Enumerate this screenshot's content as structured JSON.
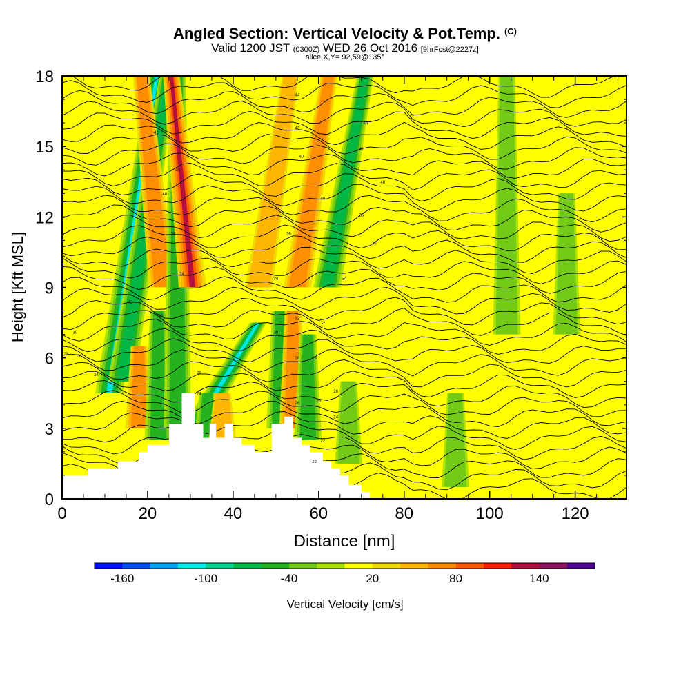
{
  "header": {
    "title": "Angled Section: Vertical Velocity & Pot.Temp.",
    "title_mark": "(C)",
    "valid_prefix": "Valid 1200 JST",
    "valid_zulu": "(0300Z)",
    "valid_date": "WED 26 Oct 2016",
    "forecast_tag": "[9hrFcst@2227z]",
    "slice_label": "slice X,Y= 92,59@135°"
  },
  "chart_data": {
    "type": "heatmap",
    "title": "Angled Section: Vertical Velocity & Pot.Temp.",
    "xlabel": "Distance [nm]",
    "ylabel": "Height [Kft MSL]",
    "xlim": [
      0,
      132
    ],
    "ylim": [
      0,
      18
    ],
    "x_ticks": [
      "0",
      "20",
      "40",
      "60",
      "80",
      "100",
      "120"
    ],
    "x_tick_values": [
      0,
      20,
      40,
      60,
      80,
      100,
      120
    ],
    "y_ticks": [
      "0",
      "3",
      "6",
      "9",
      "12",
      "15",
      "18"
    ],
    "y_tick_values": [
      0,
      3,
      6,
      9,
      12,
      15,
      18
    ],
    "grid": false,
    "colorbar": {
      "label": "Vertical Velocity [cm/s]",
      "tick_labels": [
        "-160",
        "-100",
        "-40",
        "20",
        "80",
        "140"
      ],
      "tick_values": [
        -160,
        -100,
        -40,
        20,
        80,
        140
      ],
      "range": [
        -180,
        180
      ],
      "step": 20,
      "colors": [
        "#0010ff",
        "#0050f0",
        "#00a0f0",
        "#00e8e8",
        "#00d090",
        "#00b848",
        "#20b020",
        "#70c818",
        "#a8e000",
        "#ffff00",
        "#f0d800",
        "#ffb400",
        "#ff8c00",
        "#ff5a00",
        "#ff2000",
        "#b01040",
        "#901060",
        "#500090"
      ]
    },
    "terrain_profile": {
      "x": [
        0,
        6,
        6,
        13,
        13,
        18,
        18,
        20,
        20,
        25,
        25,
        28,
        28,
        31,
        31,
        33,
        33,
        34.5,
        34.5,
        36,
        36,
        38,
        38,
        40,
        40,
        42,
        42,
        45,
        45,
        49,
        49,
        52,
        52,
        54,
        54,
        56,
        56,
        58,
        58,
        61,
        61,
        63,
        63,
        65,
        65,
        67,
        67,
        70,
        70,
        72,
        72
      ],
      "y": [
        1.0,
        1.0,
        1.3,
        1.3,
        1.6,
        1.6,
        2.0,
        2.0,
        2.3,
        2.3,
        3.2,
        3.2,
        4.5,
        4.5,
        3.2,
        3.2,
        2.6,
        2.6,
        3.2,
        3.2,
        2.6,
        2.6,
        3.2,
        3.2,
        2.6,
        2.6,
        2.3,
        2.3,
        2.0,
        2.0,
        3.2,
        3.2,
        3.5,
        3.5,
        2.6,
        2.6,
        2.3,
        2.3,
        2.0,
        2.0,
        1.6,
        1.6,
        1.3,
        1.3,
        1.0,
        1.0,
        0.6,
        0.6,
        0.3,
        0.3,
        0
      ]
    },
    "vertical_velocity_features": [
      {
        "x": 11,
        "z0": 4.5,
        "z1": 18,
        "value": -100,
        "tilt": 0.15
      },
      {
        "x": 14,
        "z0": 5.0,
        "z1": 18,
        "value": -60,
        "tilt": 0.15
      },
      {
        "x": 18,
        "z0": 3.0,
        "z1": 6.5,
        "value": 60,
        "tilt": 0.0
      },
      {
        "x": 22.5,
        "z0": 2.5,
        "z1": 8.0,
        "value": -40,
        "tilt": 0.0
      },
      {
        "x": 23.5,
        "z0": 9.0,
        "z1": 18,
        "value": 60,
        "tilt": -0.1
      },
      {
        "x": 27,
        "z0": 3.0,
        "z1": 18,
        "value": -40,
        "tilt": 0.0
      },
      {
        "x": 30.5,
        "z0": 9.0,
        "z1": 18,
        "value": 120,
        "tilt": -0.1
      },
      {
        "x": 31,
        "z0": 3.0,
        "z1": 7.5,
        "value": -100,
        "tilt": 0.6
      },
      {
        "x": 34,
        "z0": 2.5,
        "z1": 4.5,
        "value": -40,
        "tilt": 0.0
      },
      {
        "x": 37.5,
        "z0": 2.5,
        "z1": 4.5,
        "value": 40,
        "tilt": 0.0
      },
      {
        "x": 46,
        "z0": 9.0,
        "z1": 18,
        "value": 40,
        "tilt": 0.15
      },
      {
        "x": 51,
        "z0": 3.0,
        "z1": 8.0,
        "value": -40,
        "tilt": 0.0
      },
      {
        "x": 54,
        "z0": 3.0,
        "z1": 8.0,
        "value": 60,
        "tilt": 0.0
      },
      {
        "x": 55,
        "z0": 9.0,
        "z1": 18,
        "value": 60,
        "tilt": 0.15
      },
      {
        "x": 57.5,
        "z0": 2.5,
        "z1": 7.0,
        "value": -40,
        "tilt": 0.0
      },
      {
        "x": 62,
        "z0": 9.0,
        "z1": 18,
        "value": -60,
        "tilt": 0.18
      },
      {
        "x": 67,
        "z0": 1.5,
        "z1": 5.0,
        "value": -20,
        "tilt": 0.0
      },
      {
        "x": 92,
        "z0": 0.5,
        "z1": 4.5,
        "value": -20,
        "tilt": 0.0
      },
      {
        "x": 104,
        "z0": 7.0,
        "z1": 18,
        "value": -20,
        "tilt": 0.0
      },
      {
        "x": 118,
        "z0": 7.0,
        "z1": 13,
        "value": -20,
        "tilt": 0.0
      }
    ],
    "potential_temperature_contours": {
      "labels": [
        {
          "x": 55,
          "y": 17.2,
          "text": "44"
        },
        {
          "x": 71,
          "y": 16.0,
          "text": "44"
        },
        {
          "x": 55,
          "y": 15.8,
          "text": "42"
        },
        {
          "x": 22,
          "y": 15.6,
          "text": "42"
        },
        {
          "x": 70,
          "y": 14.9,
          "text": "42"
        },
        {
          "x": 56,
          "y": 14.6,
          "text": "40"
        },
        {
          "x": 27,
          "y": 14.0,
          "text": "40"
        },
        {
          "x": 75,
          "y": 13.5,
          "text": "40"
        },
        {
          "x": 24,
          "y": 13.0,
          "text": "40"
        },
        {
          "x": 61,
          "y": 12.8,
          "text": "40"
        },
        {
          "x": 70,
          "y": 12.1,
          "text": "38"
        },
        {
          "x": 26,
          "y": 11.3,
          "text": "36"
        },
        {
          "x": 53,
          "y": 11.3,
          "text": "36"
        },
        {
          "x": 73,
          "y": 10.9,
          "text": "36"
        },
        {
          "x": 28,
          "y": 9.6,
          "text": "34"
        },
        {
          "x": 50,
          "y": 9.4,
          "text": "34"
        },
        {
          "x": 66,
          "y": 9.4,
          "text": "34"
        },
        {
          "x": 16,
          "y": 8.4,
          "text": "32"
        },
        {
          "x": 23,
          "y": 7.8,
          "text": "30"
        },
        {
          "x": 55,
          "y": 7.7,
          "text": "32"
        },
        {
          "x": 3,
          "y": 7.1,
          "text": "30"
        },
        {
          "x": 50,
          "y": 7.1,
          "text": "30"
        },
        {
          "x": 61,
          "y": 7.5,
          "text": "32"
        },
        {
          "x": 1,
          "y": 6.2,
          "text": "28"
        },
        {
          "x": 4,
          "y": 6.1,
          "text": "26"
        },
        {
          "x": 55,
          "y": 6.0,
          "text": "28"
        },
        {
          "x": 59,
          "y": 6.0,
          "text": "28"
        },
        {
          "x": 8,
          "y": 5.3,
          "text": "24"
        },
        {
          "x": 32,
          "y": 5.4,
          "text": "26"
        },
        {
          "x": 32,
          "y": 4.5,
          "text": "24"
        },
        {
          "x": 60,
          "y": 4.2,
          "text": "26"
        },
        {
          "x": 64,
          "y": 4.6,
          "text": "26"
        },
        {
          "x": 55,
          "y": 4.1,
          "text": "26"
        },
        {
          "x": 64,
          "y": 3.5,
          "text": "24"
        },
        {
          "x": 61,
          "y": 2.5,
          "text": "22"
        },
        {
          "x": 59,
          "y": 1.6,
          "text": "22"
        }
      ]
    }
  }
}
